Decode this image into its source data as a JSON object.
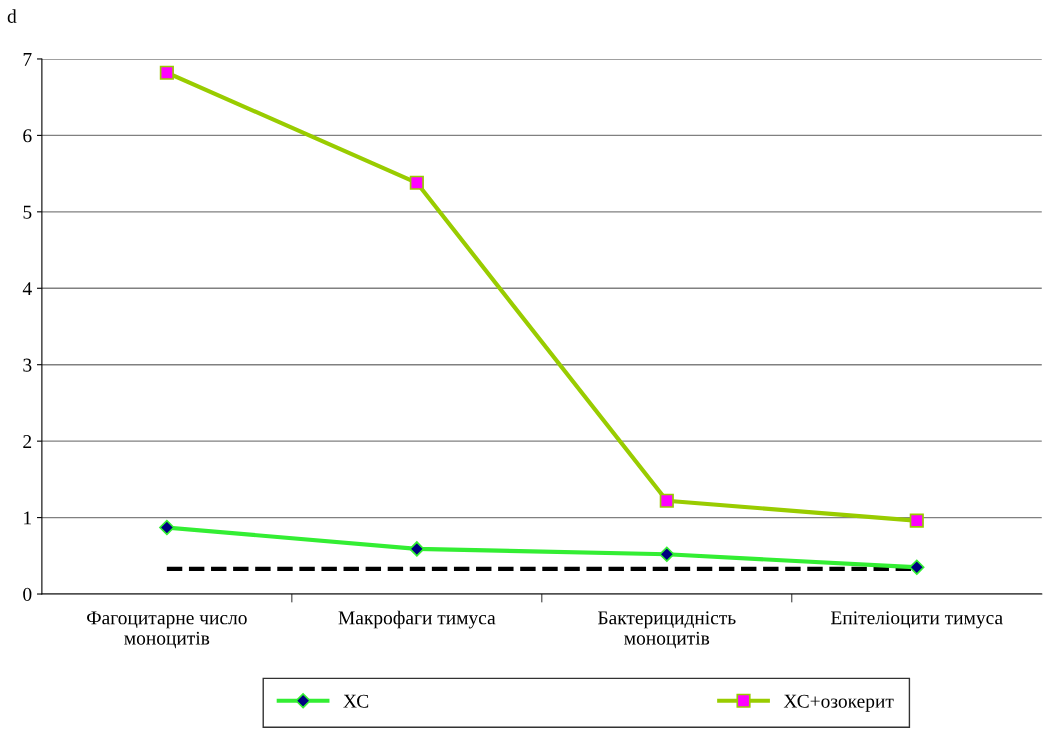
{
  "chart_data": {
    "type": "line",
    "ylabel": "d",
    "categories": [
      "Фагоцитарне число\nмоноцитів",
      "Макрофаги тимуса",
      "Бактерицидність\nмоноцитів",
      "Епітеліоцити тимуса"
    ],
    "series": [
      {
        "name": "ХС",
        "color": "#33ee33",
        "marker": "diamond",
        "values": [
          0.87,
          0.59,
          0.52,
          0.35
        ]
      },
      {
        "name": "ХС+озокерит",
        "color": "#99cc00",
        "marker": "square",
        "values": [
          6.82,
          5.38,
          1.22,
          0.96
        ]
      }
    ],
    "ylim": [
      0,
      7
    ],
    "yticks": [
      0,
      1,
      2,
      3,
      4,
      5,
      6,
      7
    ],
    "grid": "y",
    "legend": "bottom",
    "ref_lines": [
      {
        "axis": "y",
        "value": 0.33,
        "color": "#000000",
        "line_style": "dashed"
      }
    ]
  }
}
